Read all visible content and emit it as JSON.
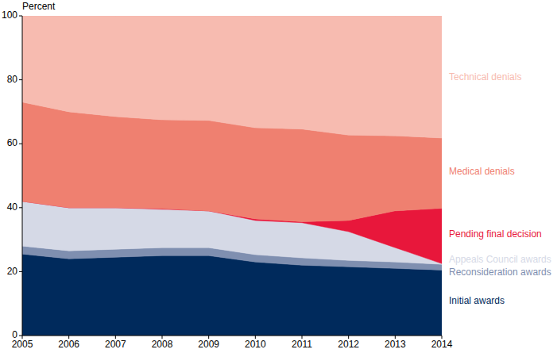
{
  "chart_data": {
    "type": "area",
    "stacked": true,
    "grid": false,
    "y_label": "Percent",
    "x": [
      2005,
      2006,
      2007,
      2008,
      2009,
      2010,
      2011,
      2012,
      2013,
      2014
    ],
    "xlim": [
      2005,
      2014
    ],
    "xticks": [
      2005,
      2006,
      2007,
      2008,
      2009,
      2010,
      2011,
      2012,
      2013,
      2014
    ],
    "ylim": [
      0,
      100
    ],
    "yticks": [
      0,
      20,
      40,
      60,
      80,
      100
    ],
    "series": [
      {
        "name": "Initial awards",
        "color": "#002a5c",
        "values": [
          25.5,
          24,
          24.5,
          25,
          25,
          23,
          22,
          21.5,
          21,
          20.5
        ]
      },
      {
        "name": "Reconsideration awards",
        "color": "#7f8fb0",
        "values": [
          2.5,
          2.5,
          2.5,
          2.5,
          2.5,
          2.3,
          2.3,
          2,
          2,
          1.8
        ]
      },
      {
        "name": "Appeals Council awards",
        "color": "#d5d9e6",
        "values": [
          14,
          13.5,
          13,
          12,
          11.5,
          10.7,
          11,
          9,
          4.5,
          0.2
        ]
      },
      {
        "name": "Pending final decision",
        "color": "#e8173b",
        "values": [
          0,
          0,
          0,
          0.2,
          0,
          0.5,
          0.3,
          3.5,
          11.5,
          17.3
        ]
      },
      {
        "name": "Medical denials",
        "color": "#ef8070",
        "values": [
          31,
          30,
          28.5,
          27.8,
          28.3,
          28.5,
          29,
          26.7,
          23.5,
          22
        ]
      },
      {
        "name": "Technical denials",
        "color": "#f7bbb0",
        "values": [
          27,
          30,
          31.5,
          32.5,
          32.7,
          35,
          35.4,
          37.3,
          37.5,
          38.2
        ]
      }
    ]
  }
}
